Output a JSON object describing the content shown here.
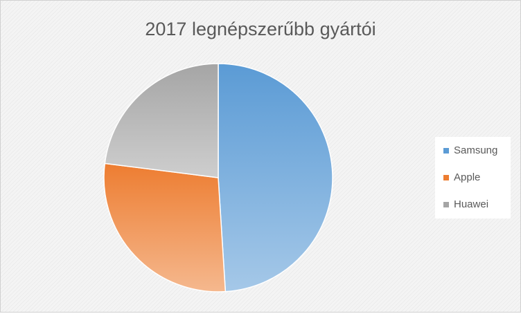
{
  "chart_data": {
    "type": "pie",
    "title": "2017 legnépszerűbb  gyártói",
    "categories": [
      "Samsung",
      "Apple",
      "Huawei"
    ],
    "values": [
      49,
      28,
      23
    ],
    "colors": [
      "#5b9bd5",
      "#ed7d31",
      "#a5a5a5"
    ],
    "legend": "right"
  }
}
